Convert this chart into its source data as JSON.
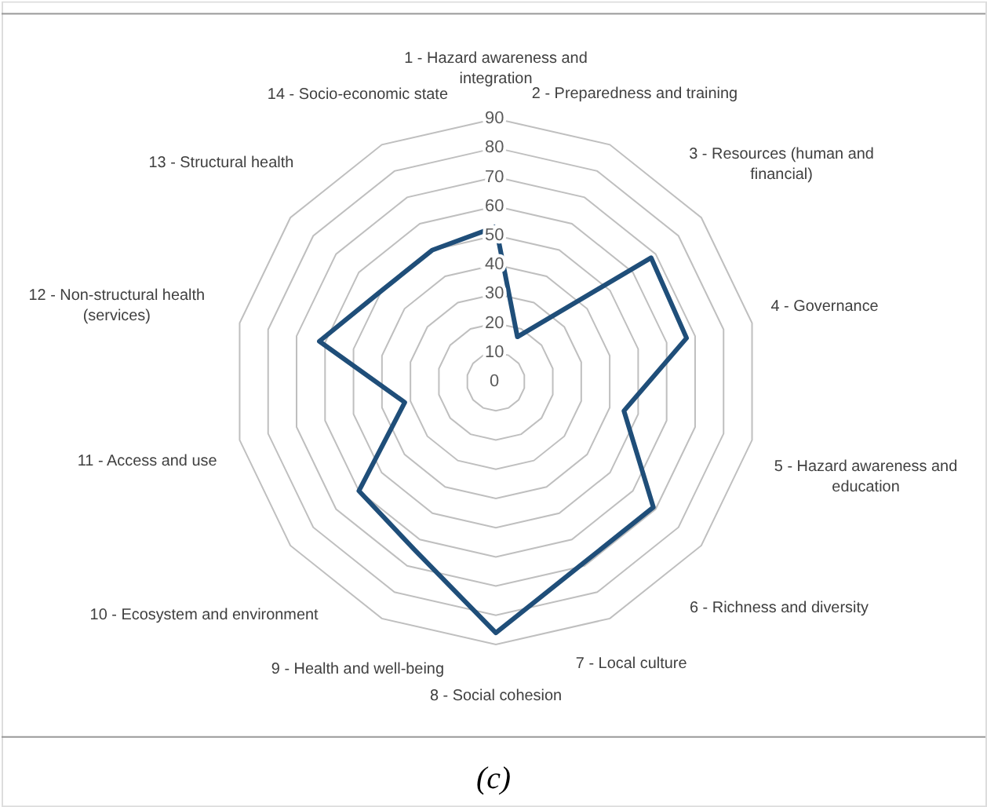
{
  "chart_data": {
    "type": "radar",
    "categories": [
      "1 - Hazard awareness and\nintegration",
      "2 - Preparedness and training",
      "3 - Resources (human and\nfinancial)",
      "4 - Governance",
      "5 - Hazard awareness and\neducation",
      "6 - Richness and diversity",
      "7 - Local culture",
      "8 - Social cohesion",
      "9 - Health and well-being",
      "10 - Ecosystem and environment",
      "11 - Access and use",
      "12 - Non-structural health\n(services)",
      "13 - Structural health",
      "14 - Socio-economic state"
    ],
    "series": [
      {
        "color": "#1f4e79",
        "values": [
          53,
          17,
          68,
          67,
          45,
          69,
          69,
          86,
          64,
          60,
          32,
          62,
          50,
          50
        ]
      }
    ],
    "ylim": [
      0,
      90
    ],
    "yticks": [
      0,
      10,
      20,
      30,
      40,
      50,
      60,
      70,
      80,
      90
    ],
    "grid": true,
    "marker": "none",
    "line_style": "solid",
    "annotations": [
      "(c)"
    ]
  }
}
